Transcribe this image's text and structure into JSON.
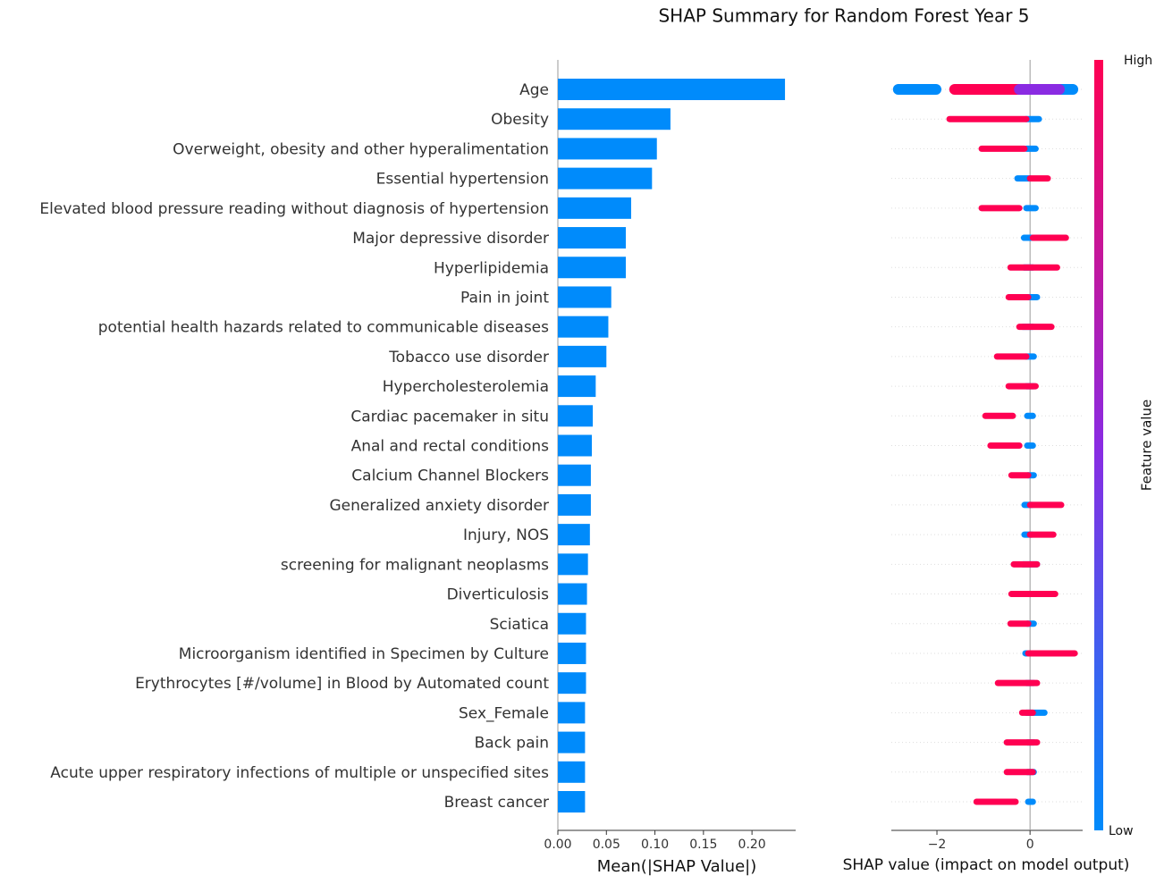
{
  "chart_data": [
    {
      "type": "barh",
      "title": "SHAP Summary for Random Forest Year 5",
      "xlabel": "Mean(|SHAP Value|)",
      "color": "#008bfb",
      "categories": [
        "Age",
        "Obesity",
        "Overweight, obesity and other hyperalimentation",
        "Essential hypertension",
        "Elevated blood pressure reading without diagnosis of hypertension",
        "Major depressive disorder",
        "Hyperlipidemia",
        "Pain in joint",
        "potential health hazards related to communicable diseases",
        "Tobacco use disorder",
        "Hypercholesterolemia",
        "Cardiac pacemaker in situ",
        "Anal and rectal conditions",
        "Calcium Channel Blockers",
        "Generalized anxiety disorder",
        "Injury, NOS",
        "screening for malignant neoplasms",
        "Diverticulosis",
        "Sciatica",
        "Microorganism identified in Specimen by Culture",
        "Erythrocytes [#/volume] in Blood by Automated count",
        "Sex_Female",
        "Back pain",
        "Acute upper respiratory infections of multiple or unspecified sites",
        "Breast cancer"
      ],
      "values": [
        0.234,
        0.116,
        0.102,
        0.097,
        0.0755,
        0.07,
        0.07,
        0.055,
        0.052,
        0.05,
        0.039,
        0.036,
        0.035,
        0.034,
        0.034,
        0.033,
        0.031,
        0.03,
        0.029,
        0.029,
        0.029,
        0.028,
        0.028,
        0.028,
        0.028
      ],
      "xlim": [
        0,
        0.245
      ],
      "xticks": [
        {
          "value": 0,
          "label": "0.00"
        },
        {
          "value": 0.05,
          "label": "0.05"
        },
        {
          "value": 0.1,
          "label": "0.10"
        },
        {
          "value": 0.15,
          "label": "0.15"
        },
        {
          "value": 0.2,
          "label": "0.20"
        }
      ]
    },
    {
      "type": "beeswarm",
      "xlabel": "SHAP value (impact on model output)",
      "xlim": [
        -2.98,
        1.13
      ],
      "xticks": [
        {
          "value": -2,
          "label": "−2"
        },
        0
      ],
      "colorbar": {
        "label": "Feature value",
        "high": "High",
        "low": "Low",
        "low_color": "#008bfb",
        "mid_color": "#8a2be2",
        "high_color": "#ff0052"
      },
      "rows": [
        {
          "low": [
            [
              -2.83,
              -2.02
            ],
            [
              -0.33,
              0.92
            ]
          ],
          "high": [
            [
              -1.62,
              -0.23
            ]
          ],
          "mid": [
            [
              -0.23,
              0.63
            ]
          ]
        },
        {
          "low": [
            [
              -0.08,
              0.19
            ]
          ],
          "high": [
            [
              -1.73,
              -0.08
            ]
          ]
        },
        {
          "low": [
            [
              -0.08,
              0.12
            ]
          ],
          "high": [
            [
              -1.04,
              -0.12
            ]
          ]
        },
        {
          "low": [
            [
              -0.27,
              0
            ]
          ],
          "high": [
            [
              0,
              0.38
            ]
          ]
        },
        {
          "low": [
            [
              -0.08,
              0.12
            ]
          ],
          "high": [
            [
              -1.04,
              -0.23
            ]
          ]
        },
        {
          "low": [
            [
              -0.13,
              0.06
            ]
          ],
          "high": [
            [
              0.06,
              0.77
            ]
          ]
        },
        {
          "low": [
            [
              -0.13,
              0.06
            ]
          ],
          "high": [
            [
              -0.42,
              0.58
            ]
          ]
        },
        {
          "low": [
            [
              -0.08,
              0.15
            ]
          ],
          "high": [
            [
              -0.46,
              -0.04
            ]
          ]
        },
        {
          "low": [
            [
              -0.15,
              0.06
            ]
          ],
          "high": [
            [
              -0.23,
              0.46
            ]
          ]
        },
        {
          "low": [
            [
              -0.08,
              0.08
            ]
          ],
          "high": [
            [
              -0.71,
              -0.08
            ]
          ]
        },
        {
          "low": [
            [
              -0.08,
              0.08
            ]
          ],
          "high": [
            [
              -0.46,
              0.12
            ]
          ]
        },
        {
          "low": [
            [
              -0.06,
              0.06
            ]
          ],
          "high": [
            [
              -0.96,
              -0.37
            ]
          ]
        },
        {
          "low": [
            [
              -0.06,
              0.06
            ]
          ],
          "high": [
            [
              -0.85,
              -0.23
            ]
          ]
        },
        {
          "low": [
            [
              -0.04,
              0.08
            ]
          ],
          "high": [
            [
              -0.4,
              -0.04
            ]
          ]
        },
        {
          "low": [
            [
              -0.12,
              0.04
            ]
          ],
          "high": [
            [
              0,
              0.67
            ]
          ]
        },
        {
          "low": [
            [
              -0.12,
              0.04
            ]
          ],
          "high": [
            [
              0,
              0.5
            ]
          ]
        },
        {
          "low": [
            [
              -0.15,
              0.15
            ]
          ],
          "high": [
            [
              -0.35,
              0.15
            ]
          ]
        },
        {
          "low": [
            [
              -0.13,
              0.04
            ]
          ],
          "high": [
            [
              -0.4,
              0.54
            ]
          ]
        },
        {
          "low": [
            [
              -0.06,
              0.08
            ]
          ],
          "high": [
            [
              -0.42,
              -0.04
            ]
          ]
        },
        {
          "low": [
            [
              -0.1,
              0.02
            ]
          ],
          "high": [
            [
              -0.04,
              0.96
            ]
          ]
        },
        {
          "low": [
            [
              -0.08,
              0.08
            ]
          ],
          "high": [
            [
              -0.69,
              0.15
            ]
          ]
        },
        {
          "low": [
            [
              -0.08,
              0.31
            ]
          ],
          "high": [
            [
              -0.17,
              0.06
            ]
          ]
        },
        {
          "low": [
            [
              -0.06,
              0.08
            ]
          ],
          "high": [
            [
              -0.5,
              0.15
            ]
          ]
        },
        {
          "low": [
            [
              -0.06,
              0.08
            ]
          ],
          "high": [
            [
              -0.5,
              0.06
            ]
          ]
        },
        {
          "low": [
            [
              -0.04,
              0.06
            ]
          ],
          "high": [
            [
              -1.15,
              -0.31
            ]
          ]
        }
      ]
    }
  ]
}
